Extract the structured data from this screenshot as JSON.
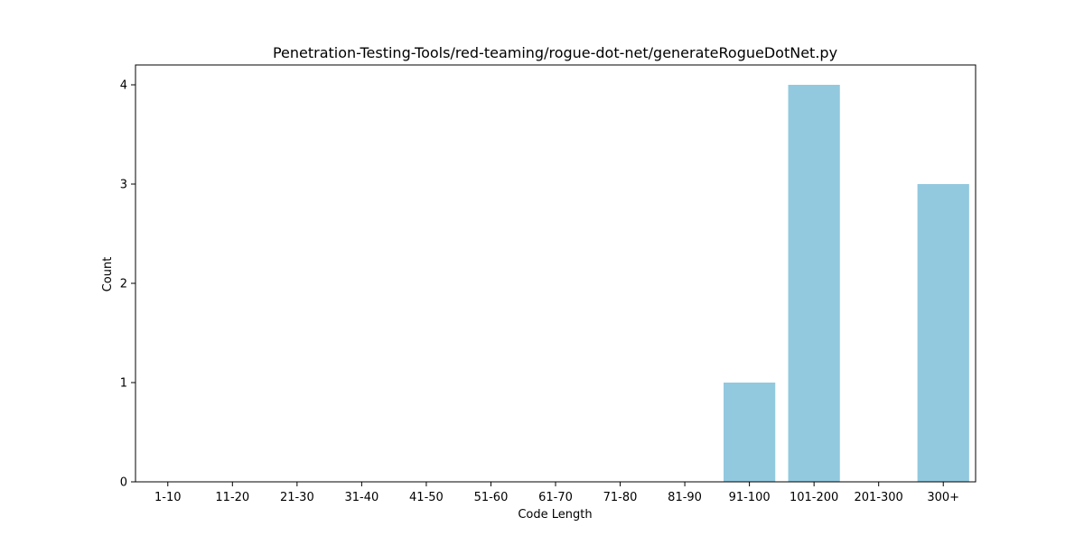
{
  "chart_data": {
    "type": "bar",
    "title": "Penetration-Testing-Tools/red-teaming/rogue-dot-net/generateRogueDotNet.py",
    "xlabel": "Code Length",
    "ylabel": "Count",
    "categories": [
      "1-10",
      "11-20",
      "21-30",
      "31-40",
      "41-50",
      "51-60",
      "61-70",
      "71-80",
      "81-90",
      "91-100",
      "101-200",
      "201-300",
      "300+"
    ],
    "values": [
      0,
      0,
      0,
      0,
      0,
      0,
      0,
      0,
      0,
      1,
      4,
      0,
      3
    ],
    "ylim": [
      0,
      4.2
    ],
    "yticks": [
      0,
      1,
      2,
      3,
      4
    ],
    "bar_color": "#92c9df",
    "grid": false,
    "legend": "none"
  }
}
